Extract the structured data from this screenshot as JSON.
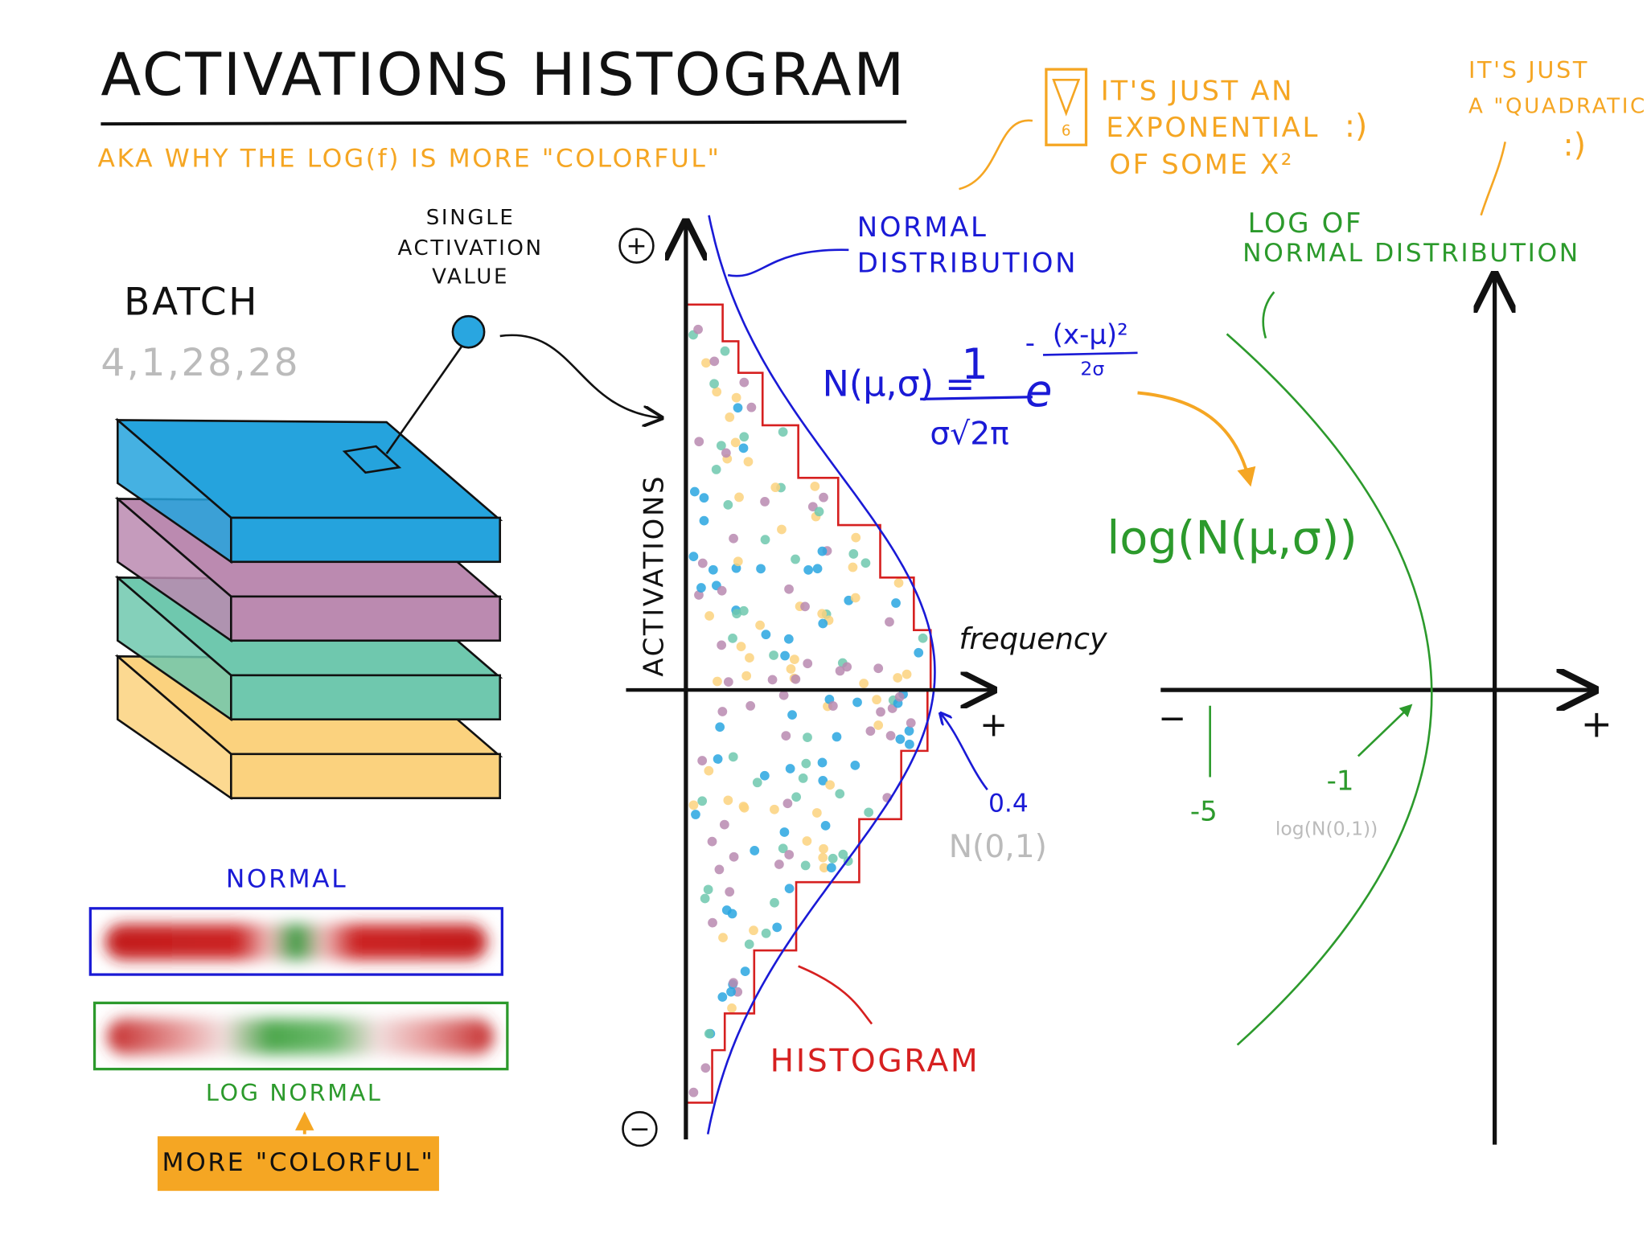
{
  "header": {
    "title": "ACTIVATIONS HISTOGRAM",
    "subtitle": "AKA WHY THE LOG(f) IS MORE \"COLORFUL\""
  },
  "batch": {
    "label": "BATCH",
    "shape": "4,1,28,28",
    "single_value": [
      "SINGLE",
      "ACTIVATION",
      "VALUE"
    ]
  },
  "bars": {
    "normal": "NORMAL",
    "log_normal": "LOG NORMAL",
    "button": "MORE \"COLORFUL\""
  },
  "histogram": {
    "plus": "+",
    "minus": "−",
    "y_axis": "ACTIVATIONS",
    "x_axis": "frequency",
    "x_plus": "+",
    "normal_label": [
      "NORMAL",
      "DISTRIBUTION"
    ],
    "peak": "0.4",
    "peak_note": "N(0,1)",
    "histogram_label": "HISTOGRAM"
  },
  "formula": {
    "lhs": "N(μ,σ) =",
    "numerator": "1",
    "denominator": "σ√2π",
    "base": "e",
    "sign": "-",
    "exp_num": "(x-μ)²",
    "exp_den": "2σ",
    "log": "log(N(μ,σ))"
  },
  "notes": {
    "exponential": [
      "IT'S JUST AN",
      "EXPONENTIAL",
      "OF SOME X²"
    ],
    "icon": "6",
    "quadratic": [
      "IT'S JUST",
      "A \"QUADRATIC\""
    ]
  },
  "log_plot": {
    "title": [
      "LOG OF",
      "NORMAL DISTRIBUTION"
    ],
    "minus": "−",
    "plus": "+",
    "tick_a": "-5",
    "tick_b": "-1",
    "tick_b_note": "log(N(0,1))"
  }
}
